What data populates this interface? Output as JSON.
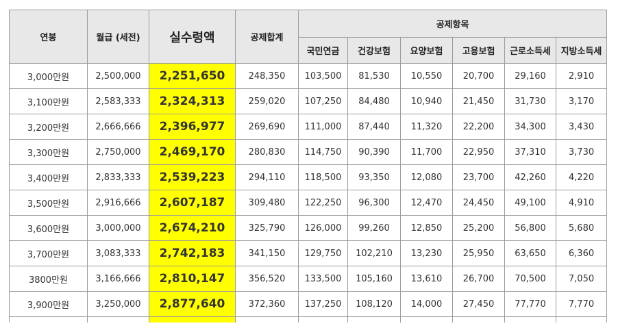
{
  "header": {
    "annual": "연봉",
    "monthly": "월급 (세전)",
    "net": "실수령액",
    "total": "공제합계",
    "group": "공제항목",
    "items": [
      "국민연금",
      "건강보험",
      "요양보험",
      "고용보험",
      "근로소득세",
      "지방소득세"
    ]
  },
  "rows": [
    {
      "annual": "3,000만원",
      "monthly": "2,500,000",
      "net": "2,251,650",
      "total": "248,350",
      "items": [
        "103,500",
        "81,530",
        "10,550",
        "20,700",
        "29,160",
        "2,910"
      ]
    },
    {
      "annual": "3,100만원",
      "monthly": "2,583,333",
      "net": "2,324,313",
      "total": "259,020",
      "items": [
        "107,250",
        "84,480",
        "10,940",
        "21,450",
        "31,730",
        "3,170"
      ]
    },
    {
      "annual": "3,200만원",
      "monthly": "2,666,666",
      "net": "2,396,977",
      "total": "269,690",
      "items": [
        "111,000",
        "87,440",
        "11,320",
        "22,200",
        "34,300",
        "3,430"
      ]
    },
    {
      "annual": "3,300만원",
      "monthly": "2,750,000",
      "net": "2,469,170",
      "total": "280,830",
      "items": [
        "114,750",
        "90,390",
        "11,700",
        "22,950",
        "37,310",
        "3,730"
      ]
    },
    {
      "annual": "3,400만원",
      "monthly": "2,833,333",
      "net": "2,539,223",
      "total": "294,110",
      "items": [
        "118,500",
        "93,350",
        "12,080",
        "23,700",
        "42,260",
        "4,220"
      ]
    },
    {
      "annual": "3,500만원",
      "monthly": "2,916,666",
      "net": "2,607,187",
      "total": "309,480",
      "items": [
        "122,250",
        "96,300",
        "12,470",
        "24,450",
        "49,100",
        "4,910"
      ]
    },
    {
      "annual": "3,600만원",
      "monthly": "3,000,000",
      "net": "2,674,210",
      "total": "325,790",
      "items": [
        "126,000",
        "99,260",
        "12,850",
        "25,200",
        "56,800",
        "5,680"
      ]
    },
    {
      "annual": "3,700만원",
      "monthly": "3,083,333",
      "net": "2,742,183",
      "total": "341,150",
      "items": [
        "129,750",
        "102,210",
        "13,230",
        "25,950",
        "63,650",
        "6,360"
      ]
    },
    {
      "annual": "3800만원",
      "monthly": "3,166,666",
      "net": "2,810,147",
      "total": "356,520",
      "items": [
        "133,500",
        "105,160",
        "13,610",
        "26,700",
        "70,500",
        "7,050"
      ]
    },
    {
      "annual": "3,900만원",
      "monthly": "3,250,000",
      "net": "2,877,640",
      "total": "372,360",
      "items": [
        "137,250",
        "108,120",
        "14,000",
        "27,450",
        "77,770",
        "7,770"
      ]
    }
  ],
  "colors": {
    "highlight": "#ffff00",
    "header_bg": "#e8e8e8",
    "border": "#9a9a9a"
  }
}
